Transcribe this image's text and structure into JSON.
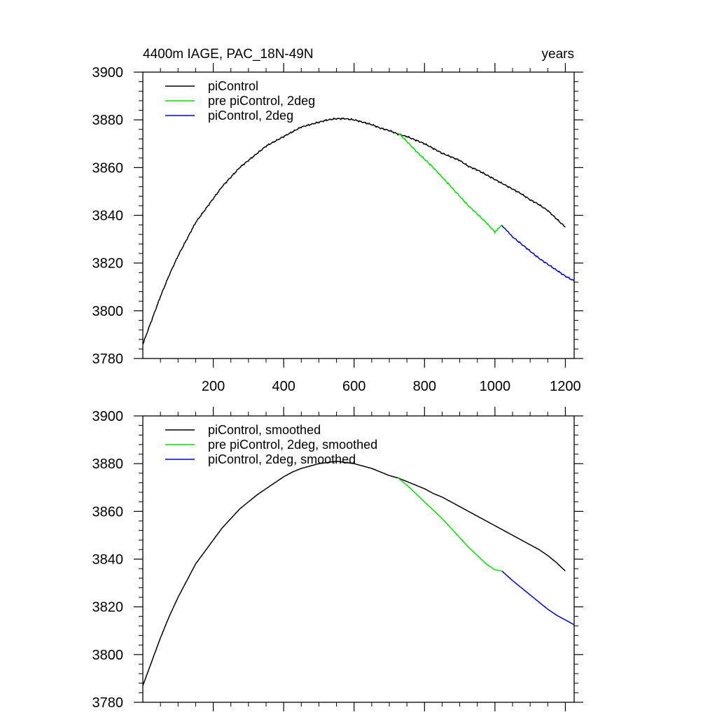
{
  "chart_data": [
    {
      "type": "line",
      "title_left": "4400m IAGE, PAC_18N-49N",
      "title_right": "years",
      "xlim": [
        0,
        1225
      ],
      "ylim": [
        3780,
        3900
      ],
      "xticks": [
        200,
        400,
        600,
        800,
        1000,
        1200
      ],
      "xtick_labels": [
        "200",
        "400",
        "600",
        "800",
        "1000",
        "1200"
      ],
      "yticks": [
        3780,
        3800,
        3820,
        3840,
        3860,
        3880,
        3900
      ],
      "ytick_labels": [
        "3780",
        "3800",
        "3820",
        "3840",
        "3860",
        "3880",
        "3900"
      ],
      "legend_position": "top-left",
      "series": [
        {
          "name": "piControl",
          "color": "#000000",
          "x": [
            0,
            25,
            50,
            75,
            100,
            125,
            150,
            175,
            200,
            225,
            250,
            275,
            300,
            325,
            350,
            375,
            400,
            425,
            450,
            475,
            500,
            525,
            550,
            575,
            600,
            625,
            650,
            675,
            700,
            725,
            750,
            775,
            800,
            825,
            850,
            875,
            900,
            925,
            950,
            975,
            1000,
            1025,
            1050,
            1075,
            1100,
            1125,
            1150,
            1175,
            1200
          ],
          "values": [
            3786,
            3796,
            3806,
            3815,
            3823,
            3830,
            3837,
            3842,
            3847,
            3852,
            3856,
            3860,
            3863,
            3866,
            3869,
            3871,
            3873,
            3875,
            3877,
            3878,
            3879,
            3880,
            3880.5,
            3880.5,
            3880,
            3879,
            3878,
            3876.5,
            3875.5,
            3874,
            3873,
            3871.5,
            3870,
            3868,
            3866,
            3864.5,
            3863,
            3860.5,
            3859,
            3857,
            3855,
            3853,
            3851,
            3849,
            3846.5,
            3844.5,
            3842,
            3838.5,
            3835
          ]
        },
        {
          "name": "pre piControl, 2deg",
          "color": "#00e000",
          "x": [
            725,
            750,
            775,
            800,
            825,
            850,
            875,
            900,
            925,
            950,
            975,
            1000,
            1020
          ],
          "values": [
            3874.5,
            3871,
            3867,
            3863.5,
            3860,
            3856,
            3852,
            3848,
            3844,
            3840.5,
            3837,
            3833,
            3836
          ]
        },
        {
          "name": "piControl, 2deg",
          "color": "#0000d0",
          "x": [
            1020,
            1050,
            1075,
            1100,
            1125,
            1150,
            1175,
            1200,
            1225
          ],
          "values": [
            3835.5,
            3831,
            3828,
            3825,
            3822,
            3819.5,
            3817,
            3814.5,
            3812.5
          ]
        }
      ]
    },
    {
      "type": "line",
      "xlim": [
        0,
        1225
      ],
      "ylim": [
        3780,
        3900
      ],
      "xticks": [
        200,
        400,
        600,
        800,
        1000,
        1200
      ],
      "yticks": [
        3780,
        3800,
        3820,
        3840,
        3860,
        3880,
        3900
      ],
      "ytick_labels": [
        "3780",
        "3800",
        "3820",
        "3840",
        "3860",
        "3880",
        "3900"
      ],
      "legend_position": "top-left",
      "series": [
        {
          "name": "piControl, smoothed",
          "color": "#000000",
          "x": [
            0,
            25,
            50,
            75,
            100,
            125,
            150,
            175,
            200,
            225,
            250,
            275,
            300,
            325,
            350,
            375,
            400,
            425,
            450,
            475,
            500,
            525,
            550,
            575,
            600,
            625,
            650,
            675,
            700,
            725,
            750,
            775,
            800,
            825,
            850,
            875,
            900,
            925,
            950,
            975,
            1000,
            1025,
            1050,
            1075,
            1100,
            1125,
            1150,
            1175,
            1200
          ],
          "values": [
            3787,
            3797,
            3807,
            3816,
            3824,
            3831,
            3838,
            3843,
            3848,
            3853,
            3857,
            3861,
            3864,
            3867,
            3869.5,
            3872,
            3874.5,
            3876.5,
            3878,
            3879,
            3880,
            3880.5,
            3881,
            3880.5,
            3880,
            3879,
            3878,
            3876.5,
            3875,
            3874,
            3872.5,
            3871,
            3869.5,
            3867.5,
            3866,
            3864,
            3862,
            3860,
            3858,
            3856,
            3854,
            3852,
            3850,
            3848,
            3846,
            3844,
            3841.5,
            3838.5,
            3835
          ]
        },
        {
          "name": "pre piControl, 2deg, smoothed",
          "color": "#00e000",
          "x": [
            725,
            750,
            775,
            800,
            825,
            850,
            875,
            900,
            925,
            950,
            975,
            1000,
            1020
          ],
          "values": [
            3874,
            3871,
            3867.5,
            3864,
            3860.5,
            3857,
            3853,
            3849,
            3845,
            3841.5,
            3838,
            3835.5,
            3835
          ]
        },
        {
          "name": "piControl, 2deg, smoothed",
          "color": "#0000d0",
          "x": [
            1020,
            1050,
            1075,
            1100,
            1125,
            1150,
            1175,
            1200,
            1225
          ],
          "values": [
            3835,
            3831,
            3828,
            3825,
            3822,
            3819,
            3816.5,
            3814.5,
            3812.5
          ]
        }
      ]
    }
  ]
}
